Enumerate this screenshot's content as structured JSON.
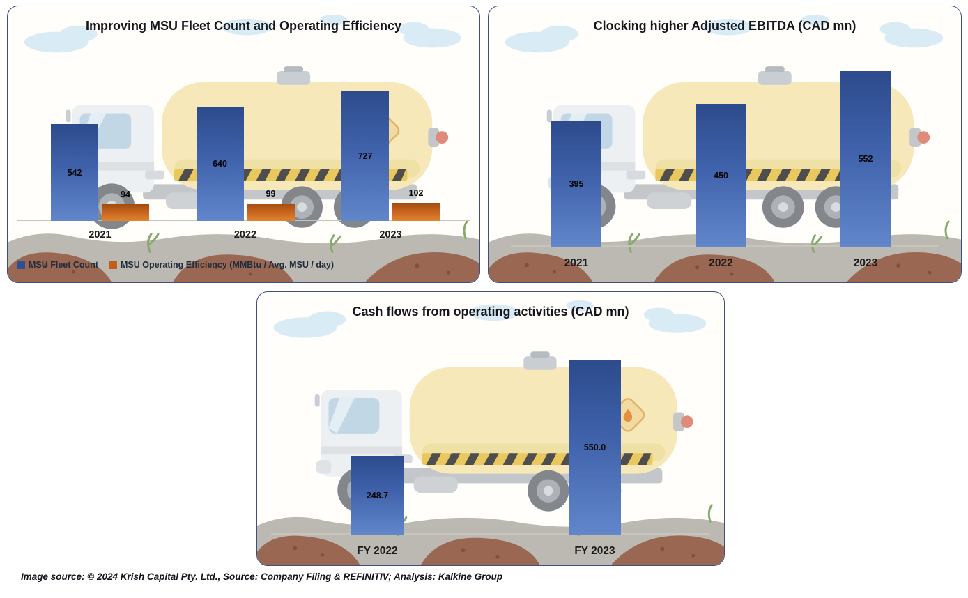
{
  "caption": "Image source: © 2024 Krish Capital Pty. Ltd., Source: Company Filing & REFINITIV; Analysis: Kalkine Group",
  "colors": {
    "bar_blue": "#2e5190",
    "bar_orange": "#c55a11",
    "panel_border": "#3f4e7e",
    "axis_line": "#c8c4bc"
  },
  "chart_data": [
    {
      "id": "msu-fleet-and-efficiency",
      "type": "bar",
      "title": "Improving MSU Fleet Count and Operating Efficiency",
      "categories": [
        "2021",
        "2022",
        "2023"
      ],
      "series": [
        {
          "name": "MSU Fleet Count",
          "values": [
            542,
            640,
            727
          ],
          "labels": [
            "542",
            "640",
            "727"
          ],
          "color": "#2e5190",
          "palette": "blue",
          "label_position": "center"
        },
        {
          "name": "MSU Operating Efficiency (MMBtu / Avg. MSU / day)",
          "values": [
            94,
            99,
            102
          ],
          "labels": [
            "94",
            "99",
            "102"
          ],
          "color": "#c55a11",
          "palette": "orange",
          "label_position": "above"
        }
      ],
      "xlabel": "",
      "ylabel": "",
      "ylim": [
        0,
        760
      ],
      "grid": false,
      "legend_position": "bottom-left"
    },
    {
      "id": "adjusted-ebitda",
      "type": "bar",
      "title": "Clocking higher Adjusted EBITDA (CAD mn)",
      "categories": [
        "2021",
        "2022",
        "2023"
      ],
      "series": [
        {
          "values": [
            395,
            450,
            552
          ],
          "labels": [
            "395",
            "450",
            "552"
          ],
          "color": "#2e5190",
          "palette": "blue",
          "label_position": "center"
        }
      ],
      "xlabel": "",
      "ylabel": "",
      "ylim": [
        0,
        565
      ],
      "grid": false,
      "legend_position": "none"
    },
    {
      "id": "operating-cash-flows",
      "type": "bar",
      "title": "Cash flows from operating activities (CAD mn)",
      "categories": [
        "FY 2022",
        "FY 2023"
      ],
      "series": [
        {
          "values": [
            248.7,
            550.0
          ],
          "labels": [
            "248.7",
            "550.0"
          ],
          "color": "#2e5190",
          "palette": "blue",
          "label_position": "center"
        }
      ],
      "xlabel": "",
      "ylabel": "",
      "ylim": [
        0,
        560
      ],
      "grid": false,
      "legend_position": "none"
    }
  ]
}
